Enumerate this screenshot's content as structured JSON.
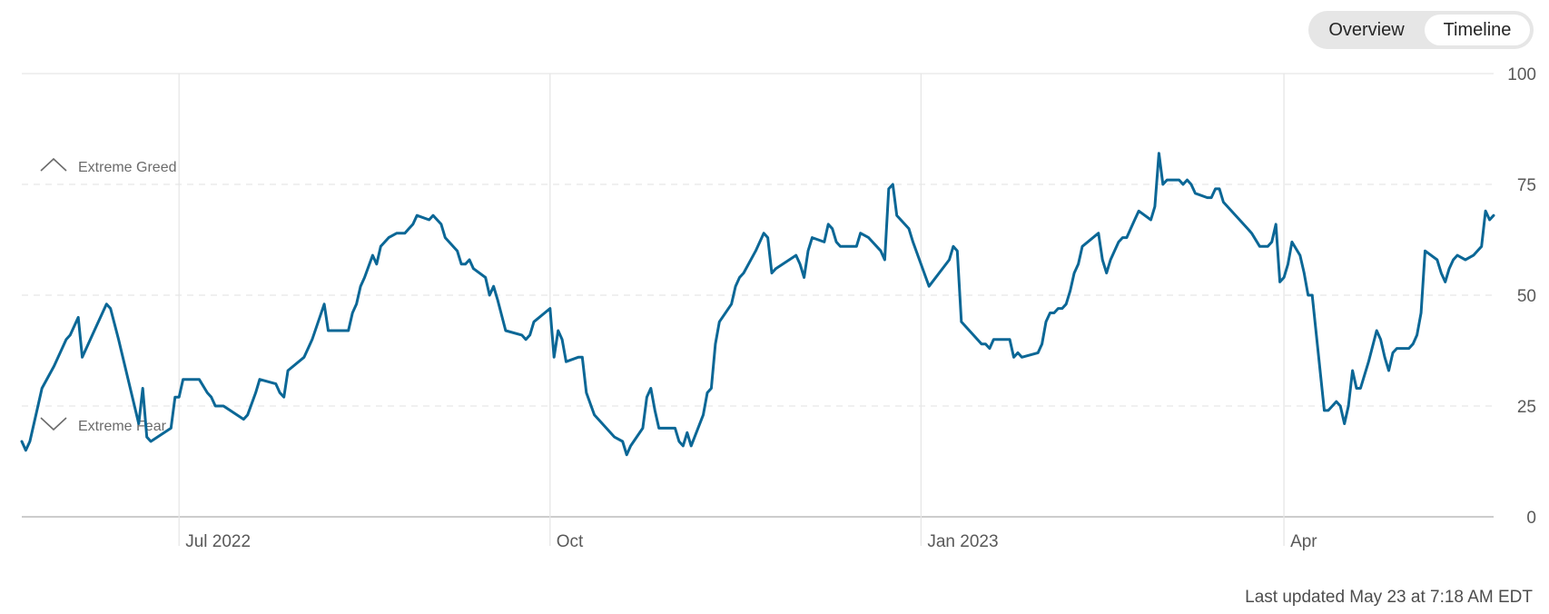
{
  "tabs": {
    "overview_label": "Overview",
    "timeline_label": "Timeline",
    "active": "Timeline"
  },
  "zones": {
    "greed_label": "Extreme Greed",
    "fear_label": "Extreme Fear"
  },
  "footer": {
    "last_updated": "Last updated May 23 at 7:18 AM EDT"
  },
  "colors": {
    "line": "#0b6796",
    "grid": "#e6e6e6",
    "axis": "#cccccc"
  },
  "chart_data": {
    "type": "line",
    "title": "",
    "xlabel": "",
    "ylabel": "",
    "ylim": [
      0,
      100
    ],
    "y_ticks": [
      0,
      25,
      50,
      75,
      100
    ],
    "x_range": [
      "2022-05-23",
      "2023-05-23"
    ],
    "x_ticks": [
      {
        "date": "2022-07-01",
        "label": "Jul 2022"
      },
      {
        "date": "2022-10-01",
        "label": "Oct"
      },
      {
        "date": "2023-01-01",
        "label": "Jan 2023"
      },
      {
        "date": "2023-04-01",
        "label": "Apr"
      }
    ],
    "series": [
      {
        "points": [
          [
            "2022-05-23",
            17
          ],
          [
            "2022-05-24",
            15
          ],
          [
            "2022-05-25",
            17
          ],
          [
            "2022-05-27",
            25
          ],
          [
            "2022-05-28",
            29
          ],
          [
            "2022-05-31",
            34
          ],
          [
            "2022-06-03",
            40
          ],
          [
            "2022-06-04",
            41
          ],
          [
            "2022-06-06",
            45
          ],
          [
            "2022-06-07",
            36
          ],
          [
            "2022-06-10",
            42
          ],
          [
            "2022-06-13",
            48
          ],
          [
            "2022-06-14",
            47
          ],
          [
            "2022-06-16",
            40
          ],
          [
            "2022-06-21",
            21
          ],
          [
            "2022-06-22",
            29
          ],
          [
            "2022-06-23",
            18
          ],
          [
            "2022-06-24",
            17
          ],
          [
            "2022-06-29",
            20
          ],
          [
            "2022-06-30",
            27
          ],
          [
            "2022-07-01",
            27
          ],
          [
            "2022-07-02",
            31
          ],
          [
            "2022-07-06",
            31
          ],
          [
            "2022-07-08",
            28
          ],
          [
            "2022-07-09",
            27
          ],
          [
            "2022-07-10",
            25
          ],
          [
            "2022-07-12",
            25
          ],
          [
            "2022-07-17",
            22
          ],
          [
            "2022-07-18",
            23
          ],
          [
            "2022-07-20",
            28
          ],
          [
            "2022-07-21",
            31
          ],
          [
            "2022-07-25",
            30
          ],
          [
            "2022-07-26",
            28
          ],
          [
            "2022-07-27",
            27
          ],
          [
            "2022-07-28",
            33
          ],
          [
            "2022-08-01",
            36
          ],
          [
            "2022-08-03",
            40
          ],
          [
            "2022-08-06",
            48
          ],
          [
            "2022-08-07",
            42
          ],
          [
            "2022-08-12",
            42
          ],
          [
            "2022-08-13",
            46
          ],
          [
            "2022-08-14",
            48
          ],
          [
            "2022-08-15",
            52
          ],
          [
            "2022-08-16",
            54
          ],
          [
            "2022-08-18",
            59
          ],
          [
            "2022-08-19",
            57
          ],
          [
            "2022-08-20",
            61
          ],
          [
            "2022-08-22",
            63
          ],
          [
            "2022-08-24",
            64
          ],
          [
            "2022-08-26",
            64
          ],
          [
            "2022-08-27",
            65
          ],
          [
            "2022-08-28",
            66
          ],
          [
            "2022-08-29",
            68
          ],
          [
            "2022-09-01",
            67
          ],
          [
            "2022-09-02",
            68
          ],
          [
            "2022-09-04",
            66
          ],
          [
            "2022-09-05",
            63
          ],
          [
            "2022-09-08",
            60
          ],
          [
            "2022-09-09",
            57
          ],
          [
            "2022-09-10",
            57
          ],
          [
            "2022-09-11",
            58
          ],
          [
            "2022-09-12",
            56
          ],
          [
            "2022-09-15",
            54
          ],
          [
            "2022-09-16",
            50
          ],
          [
            "2022-09-17",
            52
          ],
          [
            "2022-09-18",
            49
          ],
          [
            "2022-09-20",
            42
          ],
          [
            "2022-09-24",
            41
          ],
          [
            "2022-09-25",
            40
          ],
          [
            "2022-09-26",
            41
          ],
          [
            "2022-09-27",
            44
          ],
          [
            "2022-10-01",
            47
          ],
          [
            "2022-10-02",
            36
          ],
          [
            "2022-10-03",
            42
          ],
          [
            "2022-10-04",
            40
          ],
          [
            "2022-10-05",
            35
          ],
          [
            "2022-10-08",
            36
          ],
          [
            "2022-10-09",
            36
          ],
          [
            "2022-10-10",
            28
          ],
          [
            "2022-10-12",
            23
          ],
          [
            "2022-10-17",
            18
          ],
          [
            "2022-10-19",
            17
          ],
          [
            "2022-10-20",
            14
          ],
          [
            "2022-10-21",
            16
          ],
          [
            "2022-10-24",
            20
          ],
          [
            "2022-10-25",
            27
          ],
          [
            "2022-10-26",
            29
          ],
          [
            "2022-10-27",
            24
          ],
          [
            "2022-10-28",
            20
          ],
          [
            "2022-11-01",
            20
          ],
          [
            "2022-11-02",
            17
          ],
          [
            "2022-11-03",
            16
          ],
          [
            "2022-11-04",
            19
          ],
          [
            "2022-11-05",
            16
          ],
          [
            "2022-11-08",
            23
          ],
          [
            "2022-11-09",
            28
          ],
          [
            "2022-11-10",
            29
          ],
          [
            "2022-11-11",
            39
          ],
          [
            "2022-11-12",
            44
          ],
          [
            "2022-11-15",
            48
          ],
          [
            "2022-11-16",
            52
          ],
          [
            "2022-11-17",
            54
          ],
          [
            "2022-11-18",
            55
          ],
          [
            "2022-11-21",
            60
          ],
          [
            "2022-11-23",
            64
          ],
          [
            "2022-11-24",
            63
          ],
          [
            "2022-11-25",
            55
          ],
          [
            "2022-11-26",
            56
          ],
          [
            "2022-12-01",
            59
          ],
          [
            "2022-12-02",
            57
          ],
          [
            "2022-12-03",
            54
          ],
          [
            "2022-12-04",
            60
          ],
          [
            "2022-12-05",
            63
          ],
          [
            "2022-12-08",
            62
          ],
          [
            "2022-12-09",
            66
          ],
          [
            "2022-12-10",
            65
          ],
          [
            "2022-12-11",
            62
          ],
          [
            "2022-12-12",
            61
          ],
          [
            "2022-12-14",
            61
          ],
          [
            "2022-12-16",
            61
          ],
          [
            "2022-12-17",
            64
          ],
          [
            "2022-12-19",
            63
          ],
          [
            "2022-12-22",
            60
          ],
          [
            "2022-12-23",
            58
          ],
          [
            "2022-12-24",
            74
          ],
          [
            "2022-12-25",
            75
          ],
          [
            "2022-12-26",
            68
          ],
          [
            "2022-12-29",
            65
          ],
          [
            "2022-12-30",
            62
          ],
          [
            "2023-01-03",
            52
          ],
          [
            "2023-01-08",
            58
          ],
          [
            "2023-01-09",
            61
          ],
          [
            "2023-01-10",
            60
          ],
          [
            "2023-01-11",
            44
          ],
          [
            "2023-01-15",
            40
          ],
          [
            "2023-01-16",
            39
          ],
          [
            "2023-01-17",
            39
          ],
          [
            "2023-01-18",
            38
          ],
          [
            "2023-01-19",
            40
          ],
          [
            "2023-01-23",
            40
          ],
          [
            "2023-01-24",
            36
          ],
          [
            "2023-01-25",
            37
          ],
          [
            "2023-01-26",
            36
          ],
          [
            "2023-01-30",
            37
          ],
          [
            "2023-01-31",
            39
          ],
          [
            "2023-02-01",
            44
          ],
          [
            "2023-02-02",
            46
          ],
          [
            "2023-02-03",
            46
          ],
          [
            "2023-02-04",
            47
          ],
          [
            "2023-02-05",
            47
          ],
          [
            "2023-02-06",
            48
          ],
          [
            "2023-02-07",
            51
          ],
          [
            "2023-02-08",
            55
          ],
          [
            "2023-02-09",
            57
          ],
          [
            "2023-02-10",
            61
          ],
          [
            "2023-02-14",
            64
          ],
          [
            "2023-02-15",
            58
          ],
          [
            "2023-02-16",
            55
          ],
          [
            "2023-02-17",
            58
          ],
          [
            "2023-02-18",
            60
          ],
          [
            "2023-02-19",
            62
          ],
          [
            "2023-02-20",
            63
          ],
          [
            "2023-02-21",
            63
          ],
          [
            "2023-02-22",
            65
          ],
          [
            "2023-02-23",
            67
          ],
          [
            "2023-02-24",
            69
          ],
          [
            "2023-02-27",
            67
          ],
          [
            "2023-02-28",
            70
          ],
          [
            "2023-03-01",
            82
          ],
          [
            "2023-03-02",
            75
          ],
          [
            "2023-03-03",
            76
          ],
          [
            "2023-03-06",
            76
          ],
          [
            "2023-03-07",
            75
          ],
          [
            "2023-03-08",
            76
          ],
          [
            "2023-03-09",
            75
          ],
          [
            "2023-03-10",
            73
          ],
          [
            "2023-03-13",
            72
          ],
          [
            "2023-03-14",
            72
          ],
          [
            "2023-03-15",
            74
          ],
          [
            "2023-03-16",
            74
          ],
          [
            "2023-03-17",
            71
          ],
          [
            "2023-03-23",
            65
          ],
          [
            "2023-03-24",
            64
          ],
          [
            "2023-03-26",
            61
          ],
          [
            "2023-03-28",
            61
          ],
          [
            "2023-03-29",
            62
          ],
          [
            "2023-03-30",
            66
          ],
          [
            "2023-03-31",
            53
          ],
          [
            "2023-04-01",
            54
          ],
          [
            "2023-04-02",
            57
          ],
          [
            "2023-04-03",
            62
          ],
          [
            "2023-04-05",
            59
          ],
          [
            "2023-04-06",
            55
          ],
          [
            "2023-04-07",
            50
          ],
          [
            "2023-04-08",
            50
          ],
          [
            "2023-04-11",
            24
          ],
          [
            "2023-04-12",
            24
          ],
          [
            "2023-04-14",
            26
          ],
          [
            "2023-04-15",
            25
          ],
          [
            "2023-04-16",
            21
          ],
          [
            "2023-04-17",
            25
          ],
          [
            "2023-04-18",
            33
          ],
          [
            "2023-04-19",
            29
          ],
          [
            "2023-04-20",
            29
          ],
          [
            "2023-04-22",
            35
          ],
          [
            "2023-04-24",
            42
          ],
          [
            "2023-04-25",
            40
          ],
          [
            "2023-04-26",
            36
          ],
          [
            "2023-04-27",
            33
          ],
          [
            "2023-04-28",
            37
          ],
          [
            "2023-04-29",
            38
          ],
          [
            "2023-05-01",
            38
          ],
          [
            "2023-05-02",
            38
          ],
          [
            "2023-05-03",
            39
          ],
          [
            "2023-05-04",
            41
          ],
          [
            "2023-05-05",
            46
          ],
          [
            "2023-05-06",
            60
          ],
          [
            "2023-05-09",
            58
          ],
          [
            "2023-05-10",
            55
          ],
          [
            "2023-05-11",
            53
          ],
          [
            "2023-05-12",
            56
          ],
          [
            "2023-05-13",
            58
          ],
          [
            "2023-05-14",
            59
          ],
          [
            "2023-05-16",
            58
          ],
          [
            "2023-05-18",
            59
          ],
          [
            "2023-05-19",
            60
          ],
          [
            "2023-05-20",
            61
          ],
          [
            "2023-05-21",
            69
          ],
          [
            "2023-05-22",
            67
          ],
          [
            "2023-05-23",
            68
          ]
        ]
      }
    ]
  }
}
